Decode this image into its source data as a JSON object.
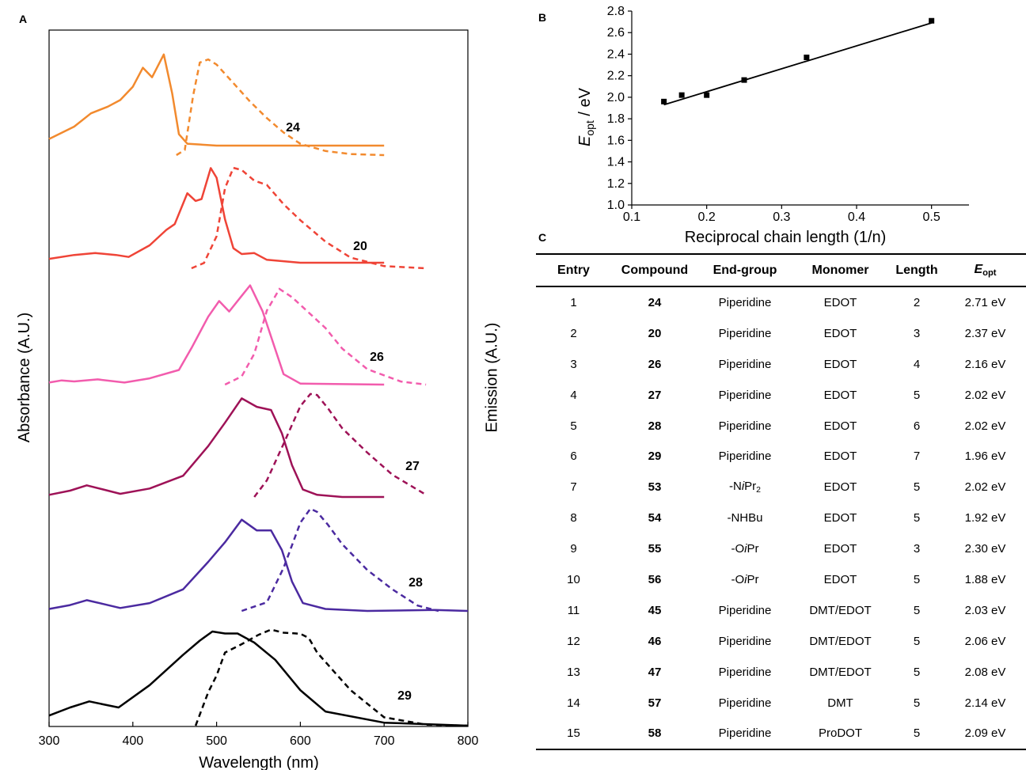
{
  "panels": {
    "a": "A",
    "b": "B",
    "c": "C"
  },
  "chart_data": [
    {
      "panel": "A",
      "type": "line",
      "xlabel": "Wavelength (nm)",
      "ylabel": "Absorbance (A.U.)",
      "y2label": "Emission (A.U.)",
      "xlim": [
        300,
        800
      ],
      "xticks": [
        300,
        400,
        500,
        600,
        700,
        800
      ],
      "colors": {
        "24": "#f28a2e",
        "20": "#ef4437",
        "26": "#f25cad",
        "27": "#9e1257",
        "28": "#4b2aa0",
        "29": "#000000"
      },
      "series": [
        {
          "name": "24",
          "absorbance": {
            "x": [
              300,
              330,
              350,
              370,
              385,
              400,
              412,
              423,
              437,
              447,
              455,
              465,
              500,
              600,
              700
            ],
            "y": [
              0.07,
              0.2,
              0.34,
              0.41,
              0.48,
              0.62,
              0.82,
              0.72,
              0.96,
              0.55,
              0.12,
              0.02,
              0.0,
              0.0,
              0.0
            ]
          },
          "emission": {
            "x": [
              452,
              462,
              472,
              480,
              490,
              500,
              520,
              540,
              560,
              580,
              600,
              630,
              660,
              700
            ],
            "y": [
              0.0,
              0.05,
              0.58,
              0.9,
              0.93,
              0.88,
              0.7,
              0.52,
              0.36,
              0.22,
              0.11,
              0.04,
              0.01,
              0.0
            ]
          }
        },
        {
          "name": "20",
          "absorbance": {
            "x": [
              300,
              330,
              355,
              380,
              395,
              420,
              440,
              450,
              465,
              475,
              482,
              493,
              500,
              510,
              520,
              530,
              545,
              560,
              600,
              700
            ],
            "y": [
              0.04,
              0.08,
              0.1,
              0.08,
              0.06,
              0.18,
              0.34,
              0.4,
              0.72,
              0.64,
              0.66,
              0.98,
              0.88,
              0.45,
              0.15,
              0.09,
              0.1,
              0.03,
              0.0,
              0.0
            ]
          },
          "emission": {
            "x": [
              470,
              485,
              500,
              510,
              520,
              530,
              545,
              560,
              580,
              600,
              630,
              660,
              700,
              750
            ],
            "y": [
              0.0,
              0.05,
              0.3,
              0.75,
              0.94,
              0.92,
              0.82,
              0.78,
              0.6,
              0.45,
              0.25,
              0.1,
              0.02,
              0.0
            ]
          }
        },
        {
          "name": "26",
          "absorbance": {
            "x": [
              300,
              315,
              330,
              358,
              390,
              420,
              455,
              470,
              490,
              503,
              515,
              530,
              540,
              555,
              580,
              600,
              700
            ],
            "y": [
              0.02,
              0.04,
              0.03,
              0.05,
              0.02,
              0.06,
              0.14,
              0.35,
              0.65,
              0.8,
              0.7,
              0.85,
              0.95,
              0.7,
              0.1,
              0.01,
              0.0
            ]
          },
          "emission": {
            "x": [
              510,
              530,
              545,
              560,
              575,
              590,
              610,
              630,
              650,
              680,
              720,
              750
            ],
            "y": [
              0.0,
              0.08,
              0.3,
              0.72,
              0.93,
              0.85,
              0.7,
              0.55,
              0.35,
              0.15,
              0.03,
              0.0
            ]
          }
        },
        {
          "name": "27",
          "absorbance": {
            "x": [
              300,
              325,
              345,
              365,
              385,
              420,
              460,
              490,
              510,
              530,
              548,
              565,
              578,
              590,
              603,
              620,
              650,
              700
            ],
            "y": [
              0.02,
              0.06,
              0.11,
              0.07,
              0.03,
              0.08,
              0.2,
              0.48,
              0.7,
              0.93,
              0.85,
              0.82,
              0.6,
              0.3,
              0.07,
              0.02,
              0.0,
              0.0
            ]
          },
          "emission": {
            "x": [
              545,
              560,
              580,
              600,
              612,
              620,
              633,
              650,
              680,
              710,
              750
            ],
            "y": [
              0.0,
              0.15,
              0.48,
              0.82,
              0.93,
              0.92,
              0.8,
              0.62,
              0.4,
              0.2,
              0.02
            ]
          }
        },
        {
          "name": "28",
          "absorbance": {
            "x": [
              300,
              325,
              345,
              365,
              385,
              420,
              460,
              490,
              510,
              530,
              548,
              565,
              578,
              590,
              603,
              630,
              680,
              760,
              800
            ],
            "y": [
              0.02,
              0.06,
              0.11,
              0.07,
              0.03,
              0.08,
              0.22,
              0.5,
              0.7,
              0.93,
              0.82,
              0.82,
              0.62,
              0.3,
              0.08,
              0.02,
              0.0,
              0.01,
              0.0
            ]
          },
          "emission": {
            "x": [
              530,
              560,
              580,
              600,
              612,
              620,
              633,
              650,
              680,
              710,
              740,
              765
            ],
            "y": [
              0.0,
              0.08,
              0.4,
              0.82,
              0.95,
              0.92,
              0.8,
              0.62,
              0.38,
              0.2,
              0.05,
              0.0
            ]
          }
        },
        {
          "name": "29",
          "absorbance": {
            "x": [
              300,
              325,
              348,
              365,
              383,
              420,
              460,
              480,
              495,
              510,
              525,
              545,
              570,
              600,
              630,
              700,
              800
            ],
            "y": [
              0.1,
              0.18,
              0.24,
              0.21,
              0.18,
              0.4,
              0.7,
              0.84,
              0.93,
              0.91,
              0.91,
              0.82,
              0.65,
              0.35,
              0.14,
              0.03,
              0.0
            ]
          },
          "emission": {
            "x": [
              475,
              490,
              500,
              510,
              530,
              550,
              565,
              580,
              600,
              610,
              620,
              640,
              660,
              700,
              750,
              800
            ],
            "y": [
              0.0,
              0.32,
              0.48,
              0.7,
              0.78,
              0.87,
              0.92,
              0.89,
              0.88,
              0.84,
              0.7,
              0.52,
              0.34,
              0.08,
              0.01,
              0.0
            ]
          }
        }
      ]
    },
    {
      "panel": "B",
      "type": "scatter",
      "xlabel": "Reciprocal chain length (1/n)",
      "ylabel_main": "E",
      "ylabel_sub": "opt",
      "ylabel_unit": " / eV",
      "xlim": [
        0.1,
        0.55
      ],
      "ylim": [
        1.0,
        2.8
      ],
      "xticks": [
        0.1,
        0.2,
        0.3,
        0.4,
        0.5
      ],
      "xtick_labels": [
        "0.1",
        "0.2",
        "0.3",
        "0.4",
        "0.5"
      ],
      "yticks": [
        1.0,
        1.2,
        1.4,
        1.6,
        1.8,
        2.0,
        2.2,
        2.4,
        2.6,
        2.8
      ],
      "ytick_labels": [
        "1.0",
        "1.2",
        "1.4",
        "1.6",
        "1.8",
        "2.0",
        "2.2",
        "2.4",
        "2.6",
        "2.8"
      ],
      "x": [
        0.1429,
        0.1667,
        0.2,
        0.25,
        0.3333,
        0.5
      ],
      "y": [
        1.96,
        2.02,
        2.02,
        2.16,
        2.37,
        2.71
      ],
      "fit": {
        "x": [
          0.1429,
          0.5
        ],
        "y": [
          1.93,
          2.69
        ]
      }
    }
  ],
  "table": {
    "headers": {
      "entry": "Entry",
      "compound": "Compound",
      "endgroup": "End-group",
      "monomer": "Monomer",
      "length": "Length",
      "eopt_main": "E",
      "eopt_sub": "opt"
    },
    "rows": [
      {
        "entry": "1",
        "compound": "24",
        "end": "Piperidine",
        "monomer": "EDOT",
        "length": "2",
        "eopt": "2.71 eV"
      },
      {
        "entry": "2",
        "compound": "20",
        "end": "Piperidine",
        "monomer": "EDOT",
        "length": "3",
        "eopt": "2.37 eV"
      },
      {
        "entry": "3",
        "compound": "26",
        "end": "Piperidine",
        "monomer": "EDOT",
        "length": "4",
        "eopt": "2.16 eV"
      },
      {
        "entry": "4",
        "compound": "27",
        "end": "Piperidine",
        "monomer": "EDOT",
        "length": "5",
        "eopt": "2.02 eV"
      },
      {
        "entry": "5",
        "compound": "28",
        "end": "Piperidine",
        "monomer": "EDOT",
        "length": "6",
        "eopt": "2.02 eV"
      },
      {
        "entry": "6",
        "compound": "29",
        "end": "Piperidine",
        "monomer": "EDOT",
        "length": "7",
        "eopt": "1.96 eV"
      },
      {
        "entry": "7",
        "compound": "53",
        "end": "-NiPr2",
        "monomer": "EDOT",
        "length": "5",
        "eopt": "2.02 eV"
      },
      {
        "entry": "8",
        "compound": "54",
        "end": "-NHBu",
        "monomer": "EDOT",
        "length": "5",
        "eopt": "1.92 eV"
      },
      {
        "entry": "9",
        "compound": "55",
        "end": "-OiPr",
        "monomer": "EDOT",
        "length": "3",
        "eopt": "2.30 eV"
      },
      {
        "entry": "10",
        "compound": "56",
        "end": "-OiPr",
        "monomer": "EDOT",
        "length": "5",
        "eopt": "1.88 eV"
      },
      {
        "entry": "11",
        "compound": "45",
        "end": "Piperidine",
        "monomer": "DMT/EDOT",
        "length": "5",
        "eopt": "2.03 eV"
      },
      {
        "entry": "12",
        "compound": "46",
        "end": "Piperidine",
        "monomer": "DMT/EDOT",
        "length": "5",
        "eopt": "2.06 eV"
      },
      {
        "entry": "13",
        "compound": "47",
        "end": "Piperidine",
        "monomer": "DMT/EDOT",
        "length": "5",
        "eopt": "2.08 eV"
      },
      {
        "entry": "14",
        "compound": "57",
        "end": "Piperidine",
        "monomer": "DMT",
        "length": "5",
        "eopt": "2.14 eV"
      },
      {
        "entry": "15",
        "compound": "58",
        "end": "Piperidine",
        "monomer": "ProDOT",
        "length": "5",
        "eopt": "2.09 eV"
      }
    ]
  }
}
